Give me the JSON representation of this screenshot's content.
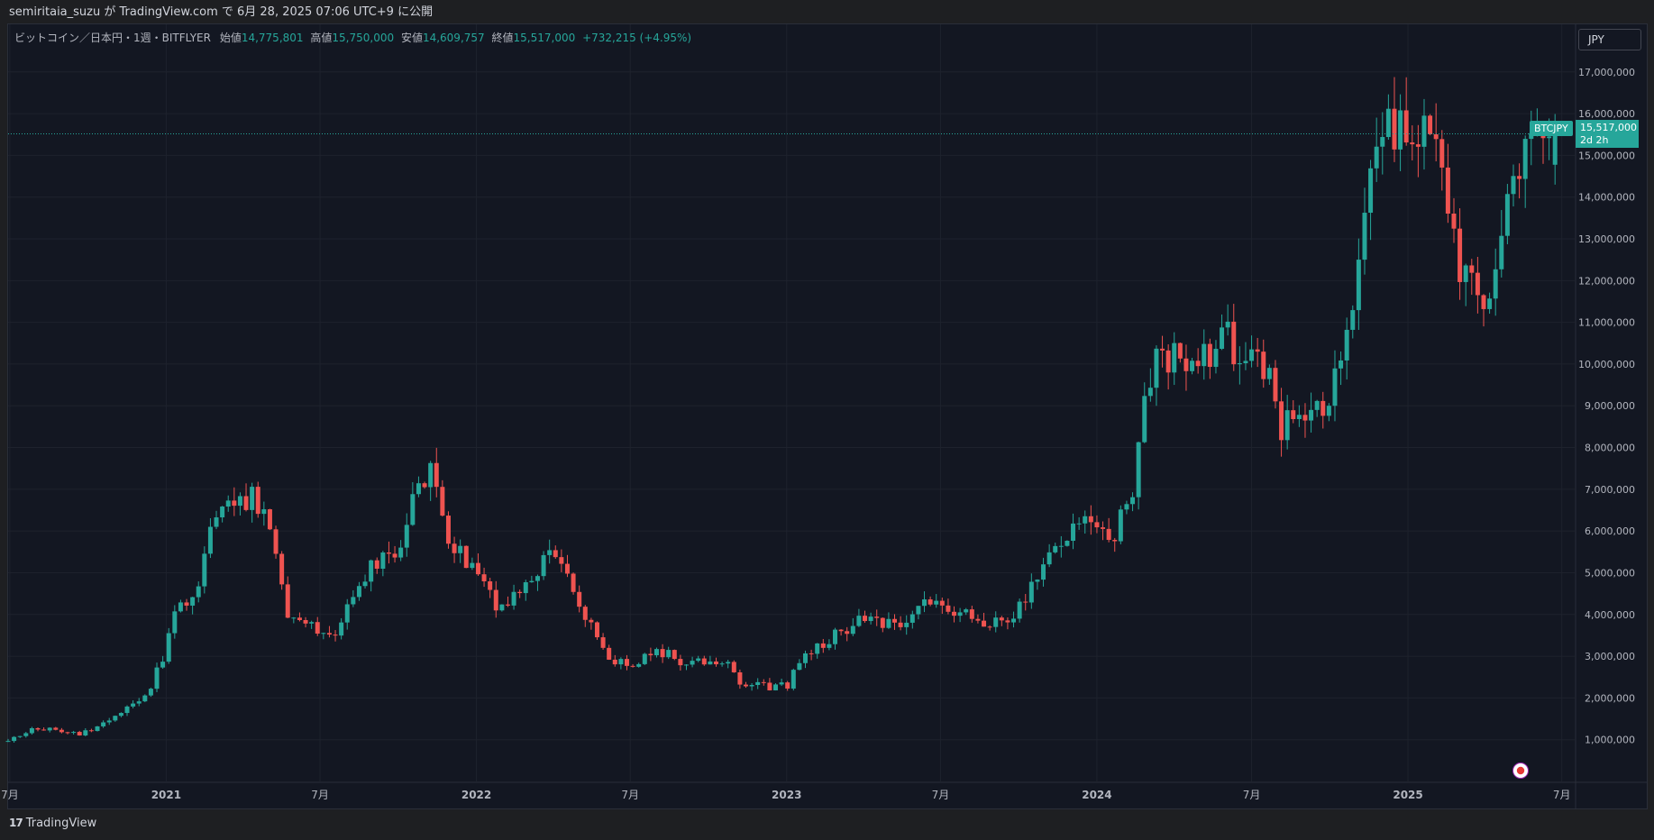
{
  "header": {
    "publish_text": "semiritaia_suzu が TradingView.com で 6月 28, 2025 07:06 UTC+9 に公開"
  },
  "legend": {
    "symbol": "ビットコイン／日本円・1週・BITFLYER",
    "open_label": "始値",
    "open": "14,775,801",
    "high_label": "高値",
    "high": "15,750,000",
    "low_label": "安値",
    "low": "14,609,757",
    "close_label": "終値",
    "close": "15,517,000",
    "change": "+732,215 (+4.95%)"
  },
  "toolbar": {
    "currency": "JPY"
  },
  "price_marker": {
    "symbol": "BTCJPY",
    "price": "15,517,000",
    "countdown": "2d 2h"
  },
  "footer": {
    "brand": "TradingView"
  },
  "colors": {
    "up": "#26a69a",
    "down": "#ef5350",
    "background": "#131722",
    "grid": "#1e222d"
  },
  "chart_data": {
    "type": "candlestick",
    "interval": "1W",
    "y_ticks": [
      "1,000,000",
      "2,000,000",
      "3,000,000",
      "4,000,000",
      "5,000,000",
      "6,000,000",
      "7,000,000",
      "8,000,000",
      "9,000,000",
      "10,000,000",
      "11,000,000",
      "12,000,000",
      "13,000,000",
      "14,000,000",
      "15,000,000",
      "16,000,000",
      "17,000,000"
    ],
    "x_ticks": [
      "7月",
      "2021",
      "7月",
      "2022",
      "7月",
      "2023",
      "7月",
      "2024",
      "7月",
      "2025",
      "7月"
    ],
    "x_tick_dates": [
      "2020-07-01",
      "2021-01-01",
      "2021-07-01",
      "2022-01-01",
      "2022-07-01",
      "2023-01-01",
      "2023-07-01",
      "2024-01-01",
      "2024-07-01",
      "2025-01-01",
      "2025-07-01"
    ],
    "ylim": [
      0,
      17600000
    ],
    "last_price": 15517000,
    "closes": [
      [
        "2020-06-29",
        980000
      ],
      [
        "2020-07-27",
        1230000
      ],
      [
        "2020-08-24",
        1240000
      ],
      [
        "2020-09-21",
        1130000
      ],
      [
        "2020-10-19",
        1380000
      ],
      [
        "2020-11-09",
        1700000
      ],
      [
        "2020-12-07",
        2000000
      ],
      [
        "2020-12-28",
        2950000
      ],
      [
        "2021-01-04",
        3700000
      ],
      [
        "2021-02-08",
        4800000
      ],
      [
        "2021-02-22",
        6200000
      ],
      [
        "2021-03-15",
        6500000
      ],
      [
        "2021-04-12",
        6900000
      ],
      [
        "2021-04-26",
        6400000
      ],
      [
        "2021-05-10",
        5500000
      ],
      [
        "2021-05-24",
        4000000
      ],
      [
        "2021-06-21",
        3700000
      ],
      [
        "2021-07-19",
        3400000
      ],
      [
        "2021-08-16",
        4900000
      ],
      [
        "2021-09-06",
        5200000
      ],
      [
        "2021-10-04",
        5500000
      ],
      [
        "2021-10-18",
        7100000
      ],
      [
        "2021-11-08",
        7400000
      ],
      [
        "2021-11-22",
        6300000
      ],
      [
        "2021-12-06",
        5600000
      ],
      [
        "2022-01-03",
        5000000
      ],
      [
        "2022-01-24",
        4200000
      ],
      [
        "2022-02-14",
        4400000
      ],
      [
        "2022-03-28",
        5500000
      ],
      [
        "2022-04-11",
        5100000
      ],
      [
        "2022-05-09",
        4000000
      ],
      [
        "2022-06-13",
        2800000
      ],
      [
        "2022-07-11",
        2900000
      ],
      [
        "2022-08-08",
        3100000
      ],
      [
        "2022-09-05",
        2800000
      ],
      [
        "2022-10-24",
        2900000
      ],
      [
        "2022-11-07",
        2300000
      ],
      [
        "2022-12-05",
        2270000
      ],
      [
        "2023-01-02",
        2300000
      ],
      [
        "2023-01-16",
        2950000
      ],
      [
        "2023-02-13",
        3300000
      ],
      [
        "2023-03-13",
        3700000
      ],
      [
        "2023-04-10",
        4000000
      ],
      [
        "2023-05-08",
        3700000
      ],
      [
        "2023-06-19",
        4300000
      ],
      [
        "2023-07-17",
        4150000
      ],
      [
        "2023-08-21",
        3800000
      ],
      [
        "2023-09-25",
        3950000
      ],
      [
        "2023-10-23",
        5000000
      ],
      [
        "2023-11-20",
        5700000
      ],
      [
        "2023-12-18",
        6200000
      ],
      [
        "2024-01-22",
        5900000
      ],
      [
        "2024-02-12",
        7100000
      ],
      [
        "2024-02-26",
        9300000
      ],
      [
        "2024-03-11",
        10200000
      ],
      [
        "2024-04-15",
        10100000
      ],
      [
        "2024-05-13",
        10300000
      ],
      [
        "2024-06-03",
        10700000
      ],
      [
        "2024-06-24",
        9800000
      ],
      [
        "2024-07-08",
        10500000
      ],
      [
        "2024-08-05",
        8500000
      ],
      [
        "2024-08-26",
        9000000
      ],
      [
        "2024-09-16",
        8800000
      ],
      [
        "2024-10-14",
        10000000
      ],
      [
        "2024-11-11",
        13100000
      ],
      [
        "2024-11-25",
        15100000
      ],
      [
        "2024-12-16",
        15800000
      ],
      [
        "2025-01-06",
        15400000
      ],
      [
        "2025-01-20",
        16000000
      ],
      [
        "2025-02-10",
        14800000
      ],
      [
        "2025-03-03",
        12500000
      ],
      [
        "2025-04-07",
        11400000
      ],
      [
        "2025-04-28",
        14000000
      ],
      [
        "2025-05-19",
        15300000
      ],
      [
        "2025-06-09",
        15200000
      ],
      [
        "2025-06-23",
        15517000
      ]
    ]
  }
}
